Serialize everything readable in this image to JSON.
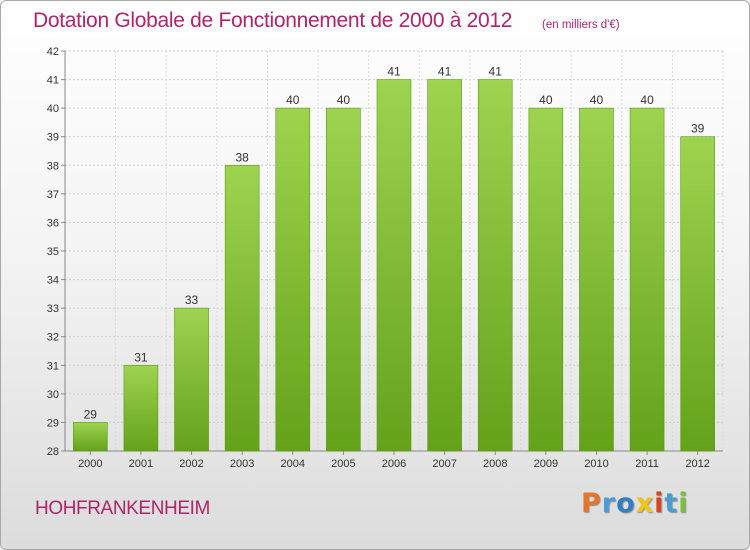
{
  "title": "Dotation Globale de Fonctionnement de 2000 à 2012",
  "unit_note": "(en milliers d'€)",
  "commune": "HOHFRANKENHEIM",
  "logo": {
    "letters": [
      "P",
      "r",
      "o",
      "x",
      "i",
      "t",
      "i"
    ],
    "colors": [
      "#e8742a",
      "#4d9bd6",
      "#2f7fc2",
      "#f0c419",
      "#d8431f",
      "#4d9bd6",
      "#7cbf3a"
    ]
  },
  "chart_data": {
    "type": "bar",
    "title": "Dotation Globale de Fonctionnement de 2000 à 2012",
    "subtitle": "(en milliers d'€)",
    "xlabel": "",
    "ylabel": "",
    "categories": [
      "2000",
      "2001",
      "2002",
      "2003",
      "2004",
      "2005",
      "2006",
      "2007",
      "2008",
      "2009",
      "2010",
      "2011",
      "2012"
    ],
    "values": [
      29,
      31,
      33,
      38,
      40,
      40,
      41,
      41,
      41,
      40,
      40,
      40,
      39
    ],
    "ylim": [
      28,
      42
    ],
    "yticks": [
      28,
      29,
      30,
      31,
      32,
      33,
      34,
      35,
      36,
      37,
      38,
      39,
      40,
      41,
      42
    ],
    "grid": true,
    "bar_color": "#7fbf2e",
    "bar_color_light": "#9ed350"
  }
}
